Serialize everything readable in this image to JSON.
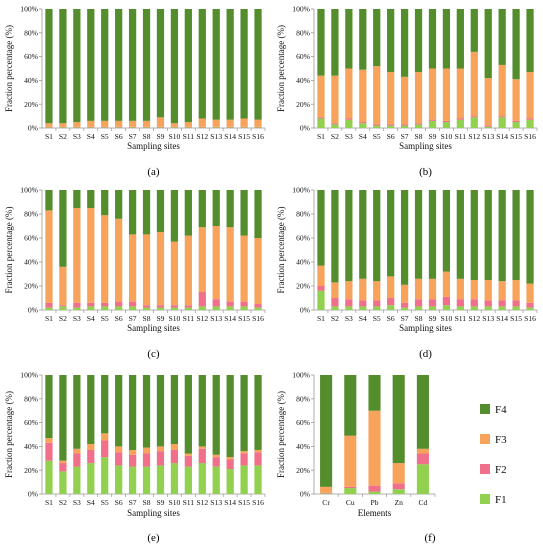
{
  "colors": {
    "F1": "#92d050",
    "F2": "#f0708c",
    "F3": "#f7a35c",
    "F4": "#548d2c"
  },
  "legend": [
    {
      "key": "F4",
      "label": "F4"
    },
    {
      "key": "F3",
      "label": "F3"
    },
    {
      "key": "F2",
      "label": "F2"
    },
    {
      "key": "F1",
      "label": "F1"
    }
  ],
  "chart_data": [
    {
      "panel": "(a)",
      "type": "bar",
      "stacked": true,
      "xlabel": "Sampling sites",
      "ylabel": "Fraction percentage (%)",
      "ylim": [
        0,
        100
      ],
      "yticks": [
        "0%",
        "20%",
        "40%",
        "60%",
        "80%",
        "100%"
      ],
      "categories": [
        "S1",
        "S2",
        "S3",
        "S4",
        "S5",
        "S6",
        "S7",
        "S8",
        "S9",
        "S10",
        "S11",
        "S12",
        "S13",
        "S14",
        "S15",
        "S16"
      ],
      "series": [
        {
          "name": "F1",
          "values": [
            0.5,
            0.5,
            0.5,
            0.5,
            0.5,
            0.5,
            0.5,
            0.5,
            0.5,
            0.5,
            0.5,
            0.5,
            0.5,
            0.5,
            0.5,
            0.5
          ]
        },
        {
          "name": "F2",
          "values": [
            0.5,
            0.5,
            0.5,
            0.5,
            0.5,
            0.5,
            0.5,
            0.5,
            0.5,
            0.5,
            0.5,
            0.5,
            0.5,
            0.5,
            0.5,
            0.5
          ]
        },
        {
          "name": "F3",
          "values": [
            3,
            3,
            4,
            5,
            5,
            5,
            5,
            5,
            8,
            3,
            4,
            7,
            6,
            6,
            7,
            6
          ]
        },
        {
          "name": "F4",
          "values": [
            96,
            96,
            95,
            94,
            94,
            94,
            94,
            94,
            91,
            96,
            95,
            92,
            93,
            93,
            92,
            93
          ]
        }
      ]
    },
    {
      "panel": "(b)",
      "type": "bar",
      "stacked": true,
      "xlabel": "Sampling sites",
      "ylabel": "Fraction percentage (%)",
      "ylim": [
        0,
        100
      ],
      "yticks": [
        "0%",
        "20%",
        "40%",
        "60%",
        "80%",
        "100%"
      ],
      "categories": [
        "S1",
        "S2",
        "S3",
        "S4",
        "S5",
        "S6",
        "S7",
        "S8",
        "S9",
        "S10",
        "S11",
        "S12",
        "S13",
        "S14",
        "S15",
        "S16"
      ],
      "series": [
        {
          "name": "F1",
          "values": [
            8,
            3,
            7,
            4,
            2,
            2,
            2,
            3,
            6,
            5,
            7,
            9,
            1,
            9,
            5,
            7
          ]
        },
        {
          "name": "F2",
          "values": [
            1,
            1,
            1,
            1,
            1,
            1,
            1,
            1,
            1,
            1,
            1,
            1,
            1,
            1,
            1,
            1
          ]
        },
        {
          "name": "F3",
          "values": [
            35,
            40,
            42,
            44,
            49,
            44,
            40,
            43,
            43,
            44,
            42,
            54,
            40,
            43,
            35,
            39
          ]
        },
        {
          "name": "F4",
          "values": [
            56,
            56,
            50,
            51,
            48,
            53,
            57,
            53,
            50,
            50,
            50,
            36,
            58,
            47,
            59,
            53
          ]
        }
      ]
    },
    {
      "panel": "(c)",
      "type": "bar",
      "stacked": true,
      "xlabel": "Sampling sites",
      "ylabel": "Fraction percentage (%)",
      "ylim": [
        0,
        100
      ],
      "yticks": [
        "0%",
        "20%",
        "40%",
        "60%",
        "80%",
        "100%"
      ],
      "categories": [
        "S1",
        "S2",
        "S3",
        "S4",
        "S5",
        "S6",
        "S7",
        "S8",
        "S9",
        "S10",
        "S11",
        "S12",
        "S13",
        "S14",
        "S15",
        "S16"
      ],
      "series": [
        {
          "name": "F1",
          "values": [
            2,
            3,
            2,
            3,
            3,
            3,
            3,
            2,
            2,
            2,
            2,
            3,
            3,
            3,
            3,
            2
          ]
        },
        {
          "name": "F2",
          "values": [
            4,
            1,
            4,
            3,
            3,
            4,
            4,
            2,
            2,
            2,
            2,
            12,
            6,
            4,
            4,
            3
          ]
        },
        {
          "name": "F3",
          "values": [
            77,
            32,
            79,
            79,
            73,
            69,
            56,
            59,
            61,
            53,
            58,
            54,
            61,
            62,
            55,
            55
          ]
        },
        {
          "name": "F4",
          "values": [
            17,
            64,
            15,
            15,
            21,
            24,
            37,
            37,
            35,
            43,
            38,
            31,
            30,
            31,
            38,
            40
          ]
        }
      ]
    },
    {
      "panel": "(d)",
      "type": "bar",
      "stacked": true,
      "xlabel": "Sampling sites",
      "ylabel": "Fraction percentage (%)",
      "ylim": [
        0,
        100
      ],
      "yticks": [
        "0%",
        "20%",
        "40%",
        "60%",
        "80%",
        "100%"
      ],
      "categories": [
        "S1",
        "S2",
        "S3",
        "S4",
        "S5",
        "S6",
        "S7",
        "S8",
        "S9",
        "S10",
        "S11",
        "S12",
        "S13",
        "S14",
        "S15",
        "S16"
      ],
      "series": [
        {
          "name": "F1",
          "values": [
            16,
            3,
            3,
            3,
            3,
            4,
            2,
            3,
            3,
            4,
            3,
            3,
            3,
            3,
            3,
            2
          ]
        },
        {
          "name": "F2",
          "values": [
            4,
            7,
            6,
            5,
            5,
            6,
            4,
            6,
            6,
            7,
            6,
            6,
            5,
            5,
            5,
            4
          ]
        },
        {
          "name": "F3",
          "values": [
            17,
            13,
            15,
            18,
            16,
            18,
            15,
            17,
            17,
            21,
            17,
            16,
            17,
            16,
            17,
            16
          ]
        },
        {
          "name": "F4",
          "values": [
            63,
            77,
            76,
            74,
            76,
            72,
            79,
            74,
            74,
            68,
            74,
            75,
            75,
            76,
            75,
            78
          ]
        }
      ]
    },
    {
      "panel": "(e)",
      "type": "bar",
      "stacked": true,
      "xlabel": "Sampling sites",
      "ylabel": "Fraction percentage (%)",
      "ylim": [
        0,
        100
      ],
      "yticks": [
        "0%",
        "20%",
        "40%",
        "60%",
        "80%",
        "100%"
      ],
      "categories": [
        "S1",
        "S2",
        "S3",
        "S4",
        "S5",
        "S6",
        "S7",
        "S8",
        "S9",
        "S10",
        "S11",
        "S12",
        "S13",
        "S14",
        "S15",
        "S16"
      ],
      "series": [
        {
          "name": "F1",
          "values": [
            28,
            19,
            23,
            26,
            31,
            24,
            23,
            23,
            24,
            26,
            23,
            26,
            23,
            21,
            24,
            24
          ]
        },
        {
          "name": "F2",
          "values": [
            15,
            7,
            11,
            11,
            14,
            11,
            10,
            11,
            12,
            11,
            9,
            12,
            8,
            8,
            10,
            11
          ]
        },
        {
          "name": "F3",
          "values": [
            4,
            2,
            4,
            5,
            6,
            5,
            4,
            5,
            4,
            5,
            2,
            2,
            2,
            2,
            2,
            2
          ]
        },
        {
          "name": "F4",
          "values": [
            53,
            72,
            62,
            58,
            49,
            60,
            63,
            61,
            60,
            58,
            66,
            60,
            67,
            69,
            64,
            63
          ]
        }
      ]
    },
    {
      "panel": "(f)",
      "type": "bar",
      "stacked": true,
      "xlabel": "Elements",
      "ylabel": "Fraction percentage (%)",
      "ylim": [
        0,
        100
      ],
      "yticks": [
        "0%",
        "20%",
        "40%",
        "60%",
        "80%",
        "100%"
      ],
      "categories": [
        "Cr",
        "Cu",
        "Pb",
        "Zn",
        "Cd"
      ],
      "series": [
        {
          "name": "F1",
          "values": [
            0.5,
            5,
            2,
            4,
            25
          ]
        },
        {
          "name": "F2",
          "values": [
            0.5,
            1,
            5,
            5,
            9
          ]
        },
        {
          "name": "F3",
          "values": [
            5,
            43,
            63,
            17,
            4
          ]
        },
        {
          "name": "F4",
          "values": [
            94,
            51,
            30,
            74,
            62
          ]
        }
      ]
    }
  ]
}
